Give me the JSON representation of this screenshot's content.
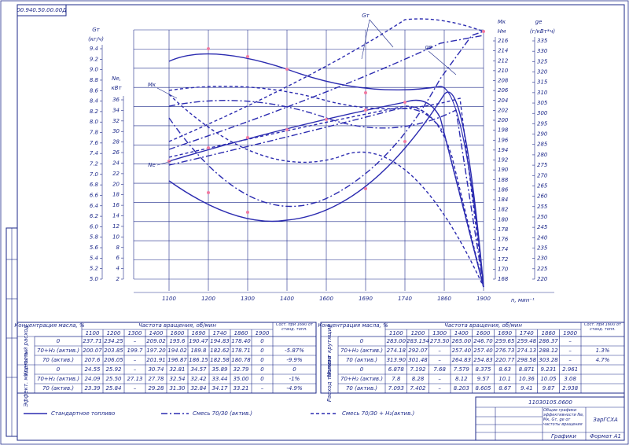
{
  "stamp": "00.940.50.00.00Д",
  "chart": {
    "x_labels": [
      "1100",
      "1200",
      "1300",
      "1400",
      "1600",
      "1690",
      "1740",
      "1860",
      "1900"
    ],
    "gt_ticks": [
      "9.4",
      "9.2",
      "9.0",
      "8.8",
      "8.6",
      "8.4",
      "8.2",
      "8.0",
      "7.8",
      "7.6",
      "7.4",
      "7.2",
      "7.0",
      "6.8",
      "6.6",
      "6.4",
      "6.2",
      "6.0",
      "5.8",
      "5.6",
      "5.4",
      "5.2",
      "5.0"
    ],
    "ne_ticks": [
      "36",
      "34",
      "32",
      "30",
      "28",
      "26",
      "24",
      "22",
      "20",
      "18",
      "16",
      "14",
      "12",
      "10",
      "8",
      "6",
      "4",
      "2"
    ],
    "mk_ticks": [
      "216",
      "214",
      "212",
      "210",
      "208",
      "206",
      "204",
      "202",
      "200",
      "198",
      "196",
      "194",
      "192",
      "190",
      "188",
      "186",
      "184",
      "182",
      "180",
      "178",
      "176",
      "174",
      "172",
      "170",
      "168"
    ],
    "ge_ticks": [
      "335",
      "330",
      "325",
      "320",
      "315",
      "310",
      "305",
      "300",
      "295",
      "290",
      "285",
      "280",
      "275",
      "270",
      "265",
      "260",
      "255",
      "250",
      "245",
      "240",
      "235",
      "230",
      "225",
      "220"
    ],
    "gt_title": "Gт",
    "gt_unit": "(кг/ч)",
    "ne_title": "Ne,",
    "ne_unit": "кВт",
    "mk_title": "Mк",
    "mk_unit": "Нм",
    "ge_title": "ge",
    "ge_unit": "(г/кВт*ч)",
    "x_title": "n, мин⁻¹",
    "annotations": [
      "Gт",
      "ge",
      "Mк",
      "Ne"
    ]
  },
  "tables": [
    {
      "concentration": "Концентрация масла, %",
      "speed": "Частота вращения, об/мин",
      "last": "Сост. при 1690 от станд. топл.",
      "columns": [
        "1100",
        "1200",
        "1300",
        "1400",
        "1600",
        "1690",
        "1740",
        "1860",
        "1900"
      ],
      "groups": [
        "Удельный расход",
        "Эффект. мощность"
      ],
      "rows": [
        [
          "0",
          "237.71",
          "234.25",
          "–",
          "209.02",
          "195.6",
          "190.47",
          "194.83",
          "178.40",
          "0",
          ""
        ],
        [
          "70+H₂ (актив.)",
          "200.07",
          "203.85",
          "199.7",
          "197.20",
          "194.02",
          "189.8",
          "182.62",
          "178.71",
          "0",
          "-5.87%"
        ],
        [
          "70 (актив.)",
          "207.6",
          "206.05",
          "–",
          "201.91",
          "196.87",
          "186.15",
          "182.58",
          "180.78",
          "0",
          "-9.9%"
        ],
        [
          "0",
          "24.55",
          "25.92",
          "–",
          "30.74",
          "32.81",
          "34.57",
          "35.89",
          "32.79",
          "0",
          "0"
        ],
        [
          "70+H₂ (актив.)",
          "24.09",
          "25.50",
          "27.13",
          "27.78",
          "32.54",
          "32.42",
          "33.44",
          "35.00",
          "0",
          "-1%"
        ],
        [
          "70 (актив.)",
          "23.39",
          "25.84",
          "–",
          "29.28",
          "31.30",
          "32.84",
          "34.17",
          "33.21",
          "–",
          "-4.9%"
        ]
      ]
    },
    {
      "concentration": "Концентрация масла, %",
      "speed": "Частота вращения, об/мин",
      "last": "Сост. при 1600 от станд. топл.",
      "columns": [
        "1100",
        "1200",
        "1300",
        "1400",
        "1600",
        "1690",
        "1740",
        "1860",
        "1900"
      ],
      "groups": [
        "Момент крутящий",
        "Расход топлива"
      ],
      "rows": [
        [
          "0",
          "283.00",
          "283.134",
          "273.50",
          "265.00",
          "246.70",
          "259.65",
          "259.48",
          "286.37",
          "–",
          ""
        ],
        [
          "70+H₂ (актив.)",
          "274.18",
          "292.07",
          "–",
          "257.40",
          "257.40",
          "276.73",
          "274.13",
          "288.12",
          "–",
          "1.3%"
        ],
        [
          "70 (актив.)",
          "313.90",
          "301.48",
          "–",
          "264.83",
          "254.83",
          "220.77",
          "298.58",
          "303.28",
          "–",
          "4.7%"
        ],
        [
          "0",
          "6.878",
          "7.192",
          "7.68",
          "7.579",
          "8.375",
          "8.63",
          "8.871",
          "9.231",
          "2.961",
          ""
        ],
        [
          "70+H₂ (актив.)",
          "7.8",
          "8.28",
          "–",
          "8.12",
          "9.57",
          "10.1",
          "10.36",
          "10.05",
          "3.08",
          ""
        ],
        [
          "70 (актив.)",
          "7.093",
          "7.402",
          "–",
          "8.203",
          "8.605",
          "8.67",
          "9.41",
          "9.87",
          "2.938",
          ""
        ]
      ]
    }
  ],
  "legend": [
    "Стандартное топливо",
    "Смесь 70/30 (актив.)",
    "Смесь 70/30 + H₂(актив.)"
  ],
  "title_block": {
    "code": "11030105.0600",
    "name": "Общие графики эффективности Ne, Mк, Gт, ge от частоты вращения",
    "sub": "Графики",
    "org": "ЗарГСХА",
    "format": "Формат А1"
  }
}
